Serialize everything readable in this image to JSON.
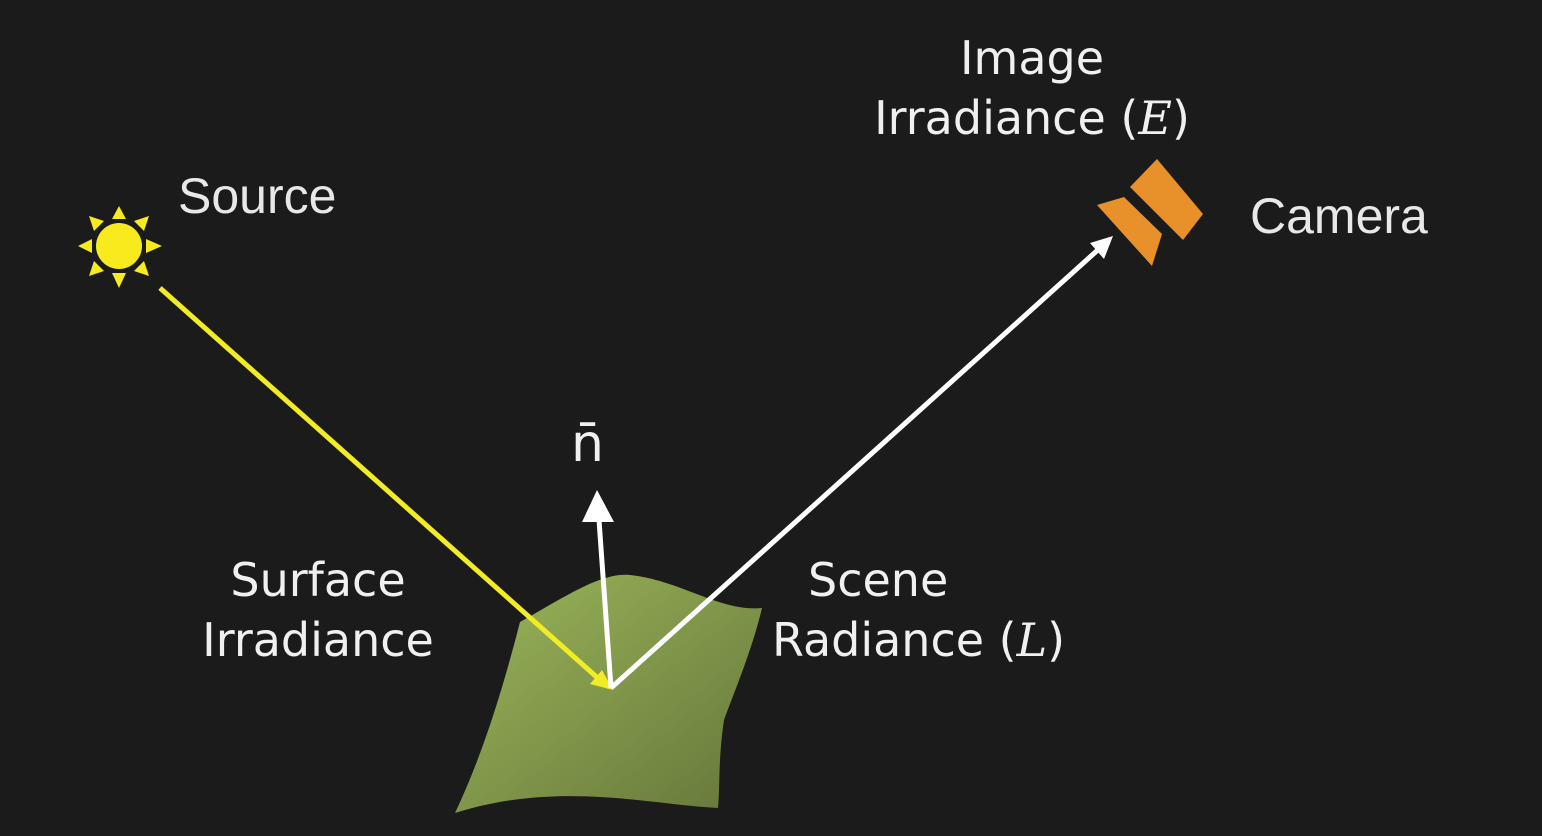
{
  "labels": {
    "source": "Source",
    "camera": "Camera",
    "normal": "n̄",
    "image_irradiance_line1": "Image",
    "image_irradiance_line2": "Irradiance (",
    "image_irradiance_var": "E",
    "image_irradiance_close": ")",
    "surface_irradiance_line1": "Surface",
    "surface_irradiance_line2": "Irradiance",
    "scene_radiance_line1": "Scene",
    "scene_radiance_line2": "Radiance (",
    "scene_radiance_var": "L",
    "scene_radiance_close": ")"
  },
  "colors": {
    "background": "#1b1b1b",
    "sun": "#f7ea1d",
    "incident_ray": "#f2ec24",
    "reflected_ray": "#ffffff",
    "normal": "#ffffff",
    "surface_light": "#95b254",
    "surface_dark": "#6e7f3c",
    "camera": "#e8902a"
  },
  "icons": {
    "source": "sun-icon",
    "camera": "camera-icon"
  }
}
